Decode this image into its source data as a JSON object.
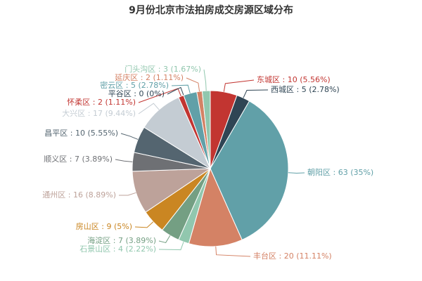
{
  "chart_data": {
    "type": "pie",
    "title": "9月份北京市法拍房成交房源区域分布",
    "labels": [
      "东城区 : 10 (5.56%)",
      "西城区 : 5 (2.78%)",
      "朝阳区 : 63 (35%)",
      "丰台区 : 20 (11.11%)",
      "石景山区 : 4 (2.22%)",
      "海淀区 : 7 (3.89%)",
      "房山区 : 9 (5%)",
      "通州区 : 16 (8.89%)",
      "顺义区 : 7 (3.89%)",
      "昌平区 : 10 (5.55%)",
      "大兴区 : 17 (9.44%)",
      "怀柔区 : 2 (1.11%)",
      "平谷区 : 0 (0%)",
      "密云区 : 5 (2.78%)",
      "延庆区 : 2 (1.11%)",
      "门头沟区 : 3 (1.67%)"
    ],
    "values": [
      10,
      5,
      63,
      20,
      4,
      7,
      9,
      16,
      7,
      10,
      17,
      2,
      0,
      5,
      2,
      3
    ],
    "colors": [
      "#c23531",
      "#2f4554",
      "#61a0a8",
      "#d48265",
      "#91c7ae",
      "#749f83",
      "#ca8622",
      "#bda29a",
      "#6e7074",
      "#546570",
      "#c4ccd3",
      "#c23531",
      "#2f4554",
      "#61a0a8",
      "#d48265",
      "#91c7ae"
    ]
  }
}
